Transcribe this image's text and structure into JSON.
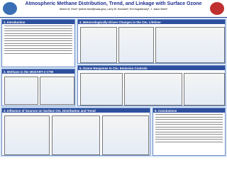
{
  "header": {
    "title": "Atmospheric Methane Distribution, Trend, and Linkage with Surface Ozone",
    "authors": "Arlene M. Fiore¹ (arlene.fiore@noaa.gov), Larry W. Horowitz², Ed Dlugokencky³, J. Jason West⁴"
  },
  "sections": [
    {
      "heading": "1. Introduction"
    },
    {
      "heading": "2. Methane in the MOZART-2 CTM"
    },
    {
      "heading": "3. Influence of Sources on Surface CH₄ Distribution and Trend"
    },
    {
      "heading": "4. Meteorologically-driven Changes in the CH₄ Lifetime"
    },
    {
      "heading": "5. Ozone Response to CH₄ Emission Controls"
    },
    {
      "heading": "6. Conclusions"
    }
  ]
}
